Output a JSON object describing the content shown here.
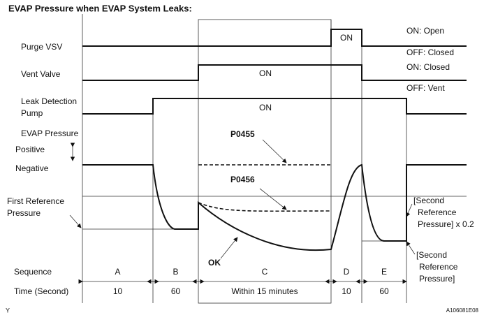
{
  "title": "EVAP Pressure when EVAP System Leaks:",
  "rows": {
    "purge_vsv": {
      "label": "Purge VSV",
      "on": "ON",
      "state_on": "ON: Open",
      "state_off": "OFF: Closed"
    },
    "vent_valve": {
      "label": "Vent Valve",
      "on": "ON",
      "state_on": "ON: Closed",
      "state_off": "OFF: Vent"
    },
    "pump": {
      "label_lines": [
        "Leak Detection",
        "Pump"
      ],
      "on": "ON"
    },
    "evap": {
      "label": "EVAP Pressure",
      "positive": "Positive",
      "negative": "Negative",
      "first_ref_lines": [
        "First Reference",
        "Pressure"
      ]
    }
  },
  "annotations": {
    "p0455": "P0455",
    "p0456": "P0456",
    "ok": "OK",
    "second_ref_x02_lines": [
      "[Second",
      "Reference",
      "Pressure] x 0.2"
    ],
    "second_ref_lines": [
      "[Second",
      "Reference",
      "Pressure]"
    ]
  },
  "sequence": {
    "label": "Sequence",
    "steps": [
      "A",
      "B",
      "C",
      "D",
      "E"
    ]
  },
  "time": {
    "label": "Time (Second)",
    "values": [
      "10",
      "60",
      "Within 15 minutes",
      "10",
      "60"
    ]
  },
  "footer": {
    "left": "Y",
    "right": "A106081E08"
  }
}
